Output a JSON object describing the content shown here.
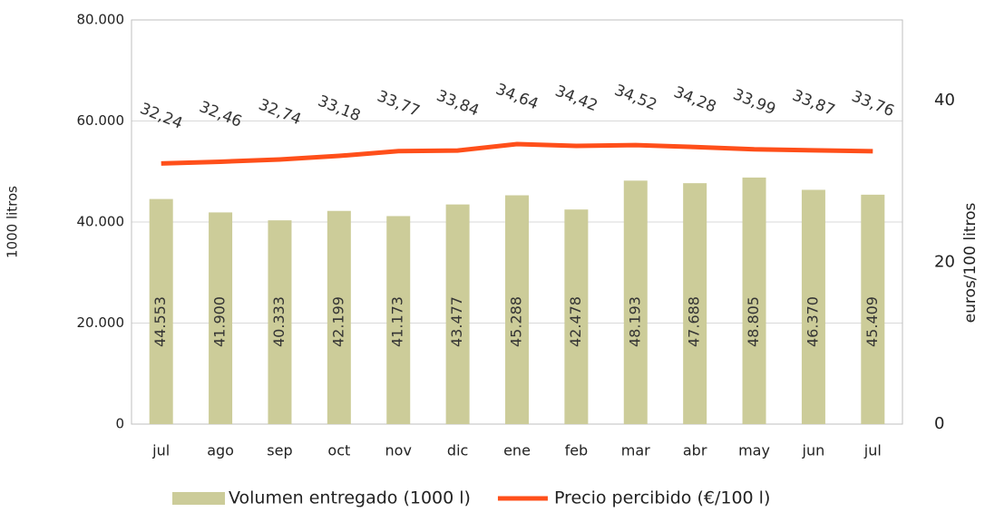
{
  "chart_data": {
    "type": "combo",
    "categories": [
      "jul",
      "ago",
      "sep",
      "oct",
      "nov",
      "dic",
      "ene",
      "feb",
      "mar",
      "abr",
      "may",
      "jun",
      "jul"
    ],
    "series": [
      {
        "name": "Volumen entregado (1000 l)",
        "type": "bar",
        "color": "#cccc99",
        "values": [
          44553,
          41900,
          40333,
          42199,
          41173,
          43477,
          45288,
          42478,
          48193,
          47688,
          48805,
          46370,
          45409
        ],
        "value_labels": [
          "44.553",
          "41.900",
          "40.333",
          "42.199",
          "41.173",
          "43.477",
          "45.288",
          "42.478",
          "48.193",
          "47.688",
          "48.805",
          "46.370",
          "45.409"
        ]
      },
      {
        "name": "Precio percibido (€/100 l)",
        "type": "line",
        "axis": "y2",
        "color": "#ff4f1a",
        "values": [
          32.24,
          32.46,
          32.74,
          33.18,
          33.77,
          33.84,
          34.64,
          34.42,
          34.52,
          34.28,
          33.99,
          33.87,
          33.76
        ],
        "value_labels": [
          "32,24",
          "32,46",
          "32,74",
          "33,18",
          "33,77",
          "33,84",
          "34,64",
          "34,42",
          "34,52",
          "34,28",
          "33,99",
          "33,87",
          "33,76"
        ]
      }
    ],
    "ylim": [
      0,
      80000
    ],
    "yticks": [
      0,
      {
        "value": 20000,
        "label": "20.000"
      },
      {
        "value": 40000,
        "label": "40.000"
      },
      {
        "value": 60000,
        "label": "60.000"
      },
      {
        "value": 80000,
        "label": "80.000"
      }
    ],
    "y2lim": [
      0,
      50
    ],
    "y2ticks": [
      0,
      20,
      40
    ],
    "ylabel": "1000 litros",
    "y2label": "euros/100 litros",
    "grid": true,
    "legend": "bottom"
  }
}
